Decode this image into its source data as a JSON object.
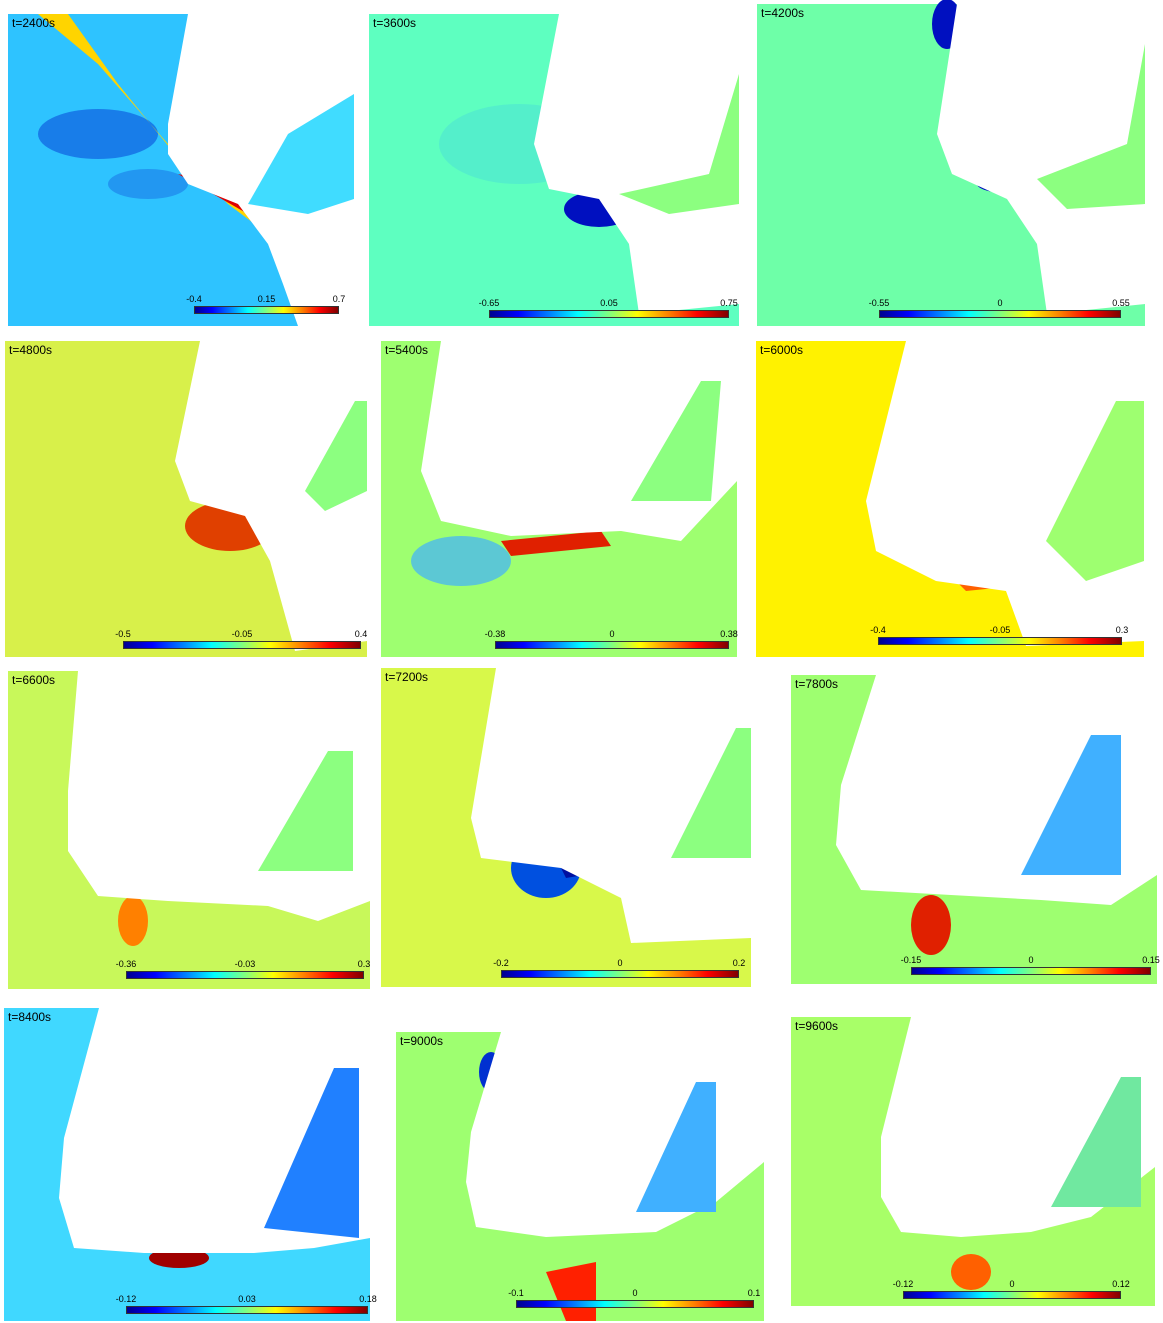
{
  "panels": [
    {
      "time": "t=2400s",
      "ticks": [
        "-0.4",
        "0.15",
        "0.7"
      ],
      "bg": "#2ec3ff"
    },
    {
      "time": "t=3600s",
      "ticks": [
        "-0.65",
        "0.05",
        "0.75"
      ],
      "bg": "#5effc0"
    },
    {
      "time": "t=4200s",
      "ticks": [
        "-0.55",
        "0",
        "0.55"
      ],
      "bg": "#6effa8"
    },
    {
      "time": "t=4800s",
      "ticks": [
        "-0.5",
        "-0.05",
        "0.4"
      ],
      "bg": "#d8f04a"
    },
    {
      "time": "t=5400s",
      "ticks": [
        "-0.38",
        "0",
        "0.38"
      ],
      "bg": "#9eff70"
    },
    {
      "time": "t=6000s",
      "ticks": [
        "-0.4",
        "-0.05",
        "0.3"
      ],
      "bg": "#fff200"
    },
    {
      "time": "t=6600s",
      "ticks": [
        "-0.36",
        "-0.03",
        "0.3"
      ],
      "bg": "#c8f85a"
    },
    {
      "time": "t=7200s",
      "ticks": [
        "-0.2",
        "0",
        "0.2"
      ],
      "bg": "#d8f84a"
    },
    {
      "time": "t=7800s",
      "ticks": [
        "-0.15",
        "0",
        "0.15"
      ],
      "bg": "#9eff70"
    },
    {
      "time": "t=8400s",
      "ticks": [
        "-0.12",
        "0.03",
        "0.18"
      ],
      "bg": "#40d8ff"
    },
    {
      "time": "t=9000s",
      "ticks": [
        "-0.1",
        "0",
        "0.1"
      ],
      "bg": "#9eff70"
    },
    {
      "time": "t=9600s",
      "ticks": [
        "-0.12",
        "0",
        "0.12"
      ],
      "bg": "#a8ff68"
    }
  ]
}
